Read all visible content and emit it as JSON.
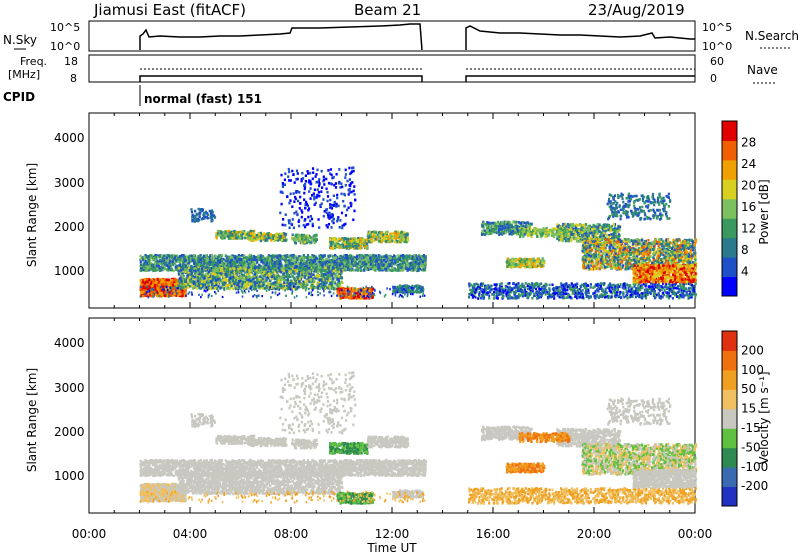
{
  "header": {
    "title": "Jiamusi East (fitACF)",
    "beam": "Beam 21",
    "date": "23/Aug/2019"
  },
  "panels": {
    "nsky": {
      "label": "N.Sky",
      "ticks": [
        "10^5",
        "10^0"
      ],
      "right_label": "N.Search",
      "right_ticks": [
        "10^5",
        "10^0"
      ]
    },
    "freq": {
      "label_line1": "Freq.",
      "label_line2": "[MHz]",
      "ticks": [
        "18",
        "8"
      ],
      "right_label": "Nave",
      "right_ticks": [
        "60",
        "0"
      ]
    },
    "cpid": {
      "label": "CPID",
      "value": "normal (fast) 151"
    }
  },
  "chart_data": [
    {
      "type": "heatmap",
      "name": "power",
      "ylabel": "Slant Range [km]",
      "yticks": [
        "4000",
        "3000",
        "2000",
        "1000"
      ],
      "colorbar": {
        "label": "Power [dB]",
        "ticks": [
          "28",
          "24",
          "20",
          "16",
          "12",
          "8",
          "4"
        ],
        "colors": [
          "#0000ff",
          "#1e50c8",
          "#2a7a8e",
          "#3a9a5e",
          "#7cc060",
          "#d8d020",
          "#f0a000",
          "#f06000",
          "#e00000"
        ]
      }
    },
    {
      "type": "heatmap",
      "name": "velocity",
      "ylabel": "Slant Range [km]",
      "yticks": [
        "4000",
        "3000",
        "2000",
        "1000"
      ],
      "colorbar": {
        "label": "Velocity [m s⁻¹]",
        "ticks": [
          "200",
          "100",
          "50",
          "15",
          "-15",
          "-50",
          "-100",
          "-200"
        ],
        "colors": [
          "#2030c0",
          "#3a6ab0",
          "#2e8a50",
          "#60c040",
          "#c8c8c0",
          "#f0c060",
          "#f0a020",
          "#f07010",
          "#e03010"
        ]
      }
    }
  ],
  "xaxis": {
    "label": "Time UT",
    "ticks": [
      "00:00",
      "04:00",
      "08:00",
      "12:00",
      "16:00",
      "20:00",
      "00:00"
    ]
  }
}
